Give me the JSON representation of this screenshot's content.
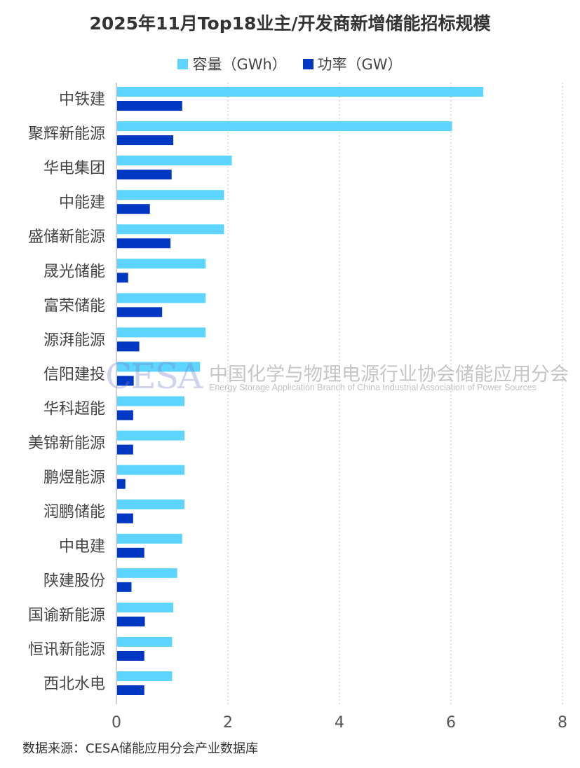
{
  "chart_data": {
    "type": "bar",
    "orientation": "horizontal",
    "title": "2025年11月Top18业主/开发商新增储能招标规模",
    "categories": [
      "中铁建",
      "聚辉新能源",
      "华电集团",
      "中能建",
      "盛储新能源",
      "晟光储能",
      "富荣储能",
      "源湃能源",
      "信阳建投",
      "华科超能",
      "美锦新能源",
      "鹏煜能源",
      "润鹏储能",
      "中电建",
      "陕建股份",
      "国谕新能源",
      "恒讯新能源",
      "西北水电"
    ],
    "series": [
      {
        "name": "容量（GWh）",
        "color": "#5dd5fe",
        "values": [
          6.58,
          6.02,
          2.07,
          1.93,
          1.93,
          1.6,
          1.6,
          1.6,
          1.5,
          1.22,
          1.22,
          1.22,
          1.22,
          1.18,
          1.09,
          1.02,
          1.0,
          1.0
        ]
      },
      {
        "name": "功率（GW）",
        "color": "#0038c4",
        "values": [
          1.18,
          1.02,
          0.99,
          0.6,
          0.97,
          0.21,
          0.82,
          0.41,
          0.31,
          0.3,
          0.3,
          0.16,
          0.3,
          0.5,
          0.27,
          0.51,
          0.5,
          0.5
        ]
      }
    ],
    "xlim": [
      0,
      8
    ],
    "xticks": [
      "0",
      "2",
      "4",
      "6",
      "8"
    ],
    "grid": "vertical dotted",
    "legend": "top-center"
  },
  "source": "数据来源：CESA储能应用分会产业数据库",
  "watermark": {
    "logo": "CESA",
    "cn": "中国化学与物理电源行业协会储能应用分会",
    "en": "Energy Storage Application Branch of China Industrial Association of Power Sources"
  }
}
